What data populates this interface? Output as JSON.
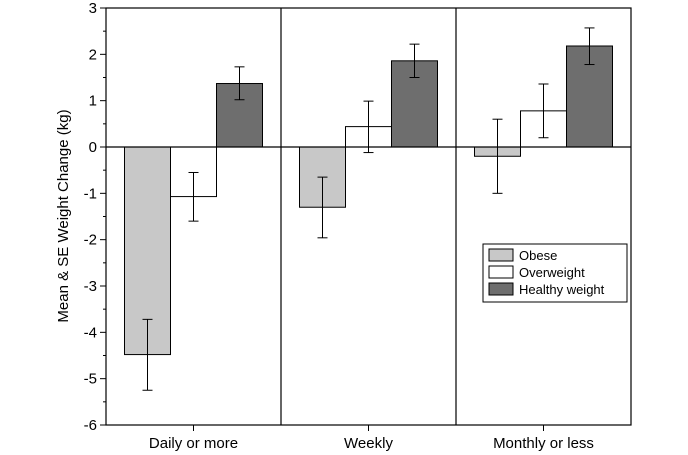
{
  "chart_data": {
    "type": "bar",
    "categories": [
      "Daily or more",
      "Weekly",
      "Monthly or less"
    ],
    "series": [
      {
        "name": "Obese",
        "color": "#c8c8c8",
        "values": [
          -4.48,
          -1.3,
          -0.2
        ],
        "se_low": [
          -5.25,
          -1.96,
          -1.0
        ],
        "se_high": [
          -3.72,
          -0.65,
          0.6
        ]
      },
      {
        "name": "Overweight",
        "color": "#ffffff",
        "values": [
          -1.07,
          0.44,
          0.78
        ],
        "se_low": [
          -1.6,
          -0.12,
          0.2
        ],
        "se_high": [
          -0.55,
          0.99,
          1.36
        ]
      },
      {
        "name": "Healthy weight",
        "color": "#6e6e6e",
        "values": [
          1.37,
          1.86,
          2.18
        ],
        "se_low": [
          1.02,
          1.5,
          1.78
        ],
        "se_high": [
          1.73,
          2.22,
          2.57
        ]
      }
    ],
    "ylabel": "Mean & SE Weight Change (kg)",
    "xlabel": "",
    "title": "",
    "ylim": [
      -6,
      3
    ],
    "yticks": [
      "-6",
      "-5",
      "-4",
      "-3",
      "-2",
      "-1",
      "0",
      "1",
      "2",
      "3"
    ],
    "legend_position": "right"
  }
}
